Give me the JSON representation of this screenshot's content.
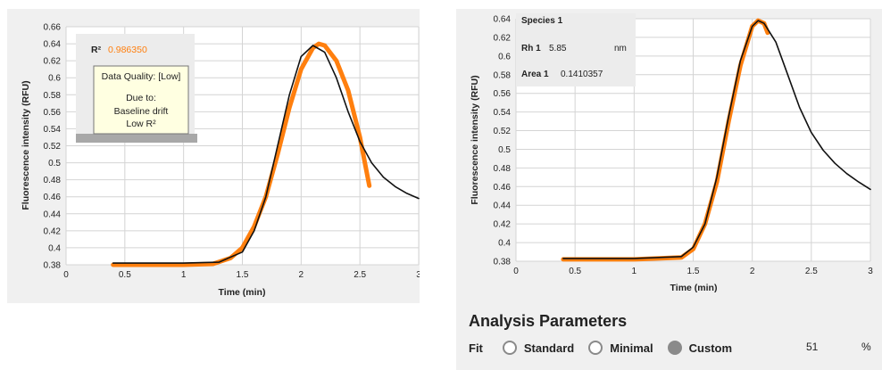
{
  "left_chart": {
    "xlabel": "Time (min)",
    "ylabel": "Fluorescence intensity (RFU)",
    "yticks": [
      "0.38",
      "0.4",
      "0.42",
      "0.44",
      "0.46",
      "0.48",
      "0.5",
      "0.52",
      "0.54",
      "0.56",
      "0.58",
      "0.6",
      "0.62",
      "0.64",
      "0.66"
    ],
    "xticks": [
      "0",
      "0.5",
      "1",
      "1.5",
      "2",
      "2.5",
      "3"
    ],
    "r2_label": "R²",
    "r2_value": "0.986350",
    "tooltip": {
      "title": "Data Quality: [Low]",
      "due_to": "Due to:",
      "reasons": [
        "Baseline drift",
        "Low R²"
      ]
    }
  },
  "right_chart": {
    "xlabel": "Time (min)",
    "ylabel": "Fluorescence intensity (RFU)",
    "yticks": [
      "0.38",
      "0.4",
      "0.42",
      "0.44",
      "0.46",
      "0.48",
      "0.5",
      "0.52",
      "0.54",
      "0.56",
      "0.58",
      "0.6",
      "0.62",
      "0.64"
    ],
    "xticks": [
      "0",
      "0.5",
      "1",
      "1.5",
      "2",
      "2.5",
      "3"
    ],
    "info": {
      "species": "Species 1",
      "rh_label": "Rh 1",
      "rh_value": "5.85",
      "rh_unit": "nm",
      "area_label": "Area 1",
      "area_value": "0.1410357"
    }
  },
  "analysis": {
    "title": "Analysis Parameters",
    "fit_label": "Fit",
    "options": [
      {
        "label": "Standard",
        "selected": false
      },
      {
        "label": "Minimal",
        "selected": false
      },
      {
        "label": "Custom",
        "selected": true
      }
    ],
    "custom_value": "51",
    "unit": "%"
  },
  "colors": {
    "measured_trace": "#111111",
    "fit_trace": "#ff7f0e",
    "plot_bg": "#ffffff",
    "grid": "#d4d4d4",
    "tooltip_bg": "#ffffe1"
  },
  "chart_data": [
    {
      "type": "line",
      "title": "",
      "xlabel": "Time (min)",
      "ylabel": "Fluorescence intensity (RFU)",
      "xlim": [
        0,
        3
      ],
      "ylim": [
        0.38,
        0.66
      ],
      "grid": true,
      "series": [
        {
          "color": "#111111",
          "x": [
            0.4,
            1.0,
            1.3,
            1.5,
            1.6,
            1.7,
            1.8,
            1.9,
            2.0,
            2.1,
            2.2,
            2.3,
            2.4,
            2.5,
            2.6,
            2.7,
            2.8,
            2.9,
            3.0
          ],
          "y": [
            0.382,
            0.382,
            0.383,
            0.395,
            0.42,
            0.46,
            0.52,
            0.58,
            0.625,
            0.638,
            0.63,
            0.6,
            0.56,
            0.525,
            0.5,
            0.483,
            0.472,
            0.464,
            0.458
          ]
        },
        {
          "color": "#ff7f0e",
          "x": [
            0.4,
            1.0,
            1.25,
            1.4,
            1.5,
            1.6,
            1.7,
            1.8,
            1.9,
            2.0,
            2.1,
            2.15,
            2.2,
            2.3,
            2.4,
            2.5,
            2.58
          ],
          "y": [
            0.38,
            0.38,
            0.381,
            0.388,
            0.4,
            0.425,
            0.46,
            0.51,
            0.565,
            0.61,
            0.635,
            0.64,
            0.638,
            0.62,
            0.585,
            0.53,
            0.473
          ]
        }
      ]
    },
    {
      "type": "line",
      "title": "",
      "xlabel": "Time (min)",
      "ylabel": "Fluorescence intensity (RFU)",
      "xlim": [
        0,
        3
      ],
      "ylim": [
        0.38,
        0.64
      ],
      "grid": true,
      "series": [
        {
          "color": "#111111",
          "x": [
            0.4,
            1.0,
            1.4,
            1.5,
            1.6,
            1.7,
            1.8,
            1.9,
            2.0,
            2.05,
            2.1,
            2.2,
            2.3,
            2.4,
            2.5,
            2.6,
            2.7,
            2.8,
            2.9,
            3.0
          ],
          "y": [
            0.383,
            0.383,
            0.385,
            0.395,
            0.42,
            0.47,
            0.535,
            0.595,
            0.632,
            0.638,
            0.635,
            0.615,
            0.58,
            0.545,
            0.518,
            0.499,
            0.485,
            0.474,
            0.465,
            0.457
          ]
        },
        {
          "color": "#ff7f0e",
          "x": [
            0.4,
            1.0,
            1.4,
            1.5,
            1.6,
            1.7,
            1.8,
            1.9,
            2.0,
            2.05,
            2.1,
            2.13
          ],
          "y": [
            0.382,
            0.382,
            0.384,
            0.393,
            0.42,
            0.465,
            0.53,
            0.59,
            0.632,
            0.638,
            0.635,
            0.625
          ]
        }
      ]
    }
  ]
}
